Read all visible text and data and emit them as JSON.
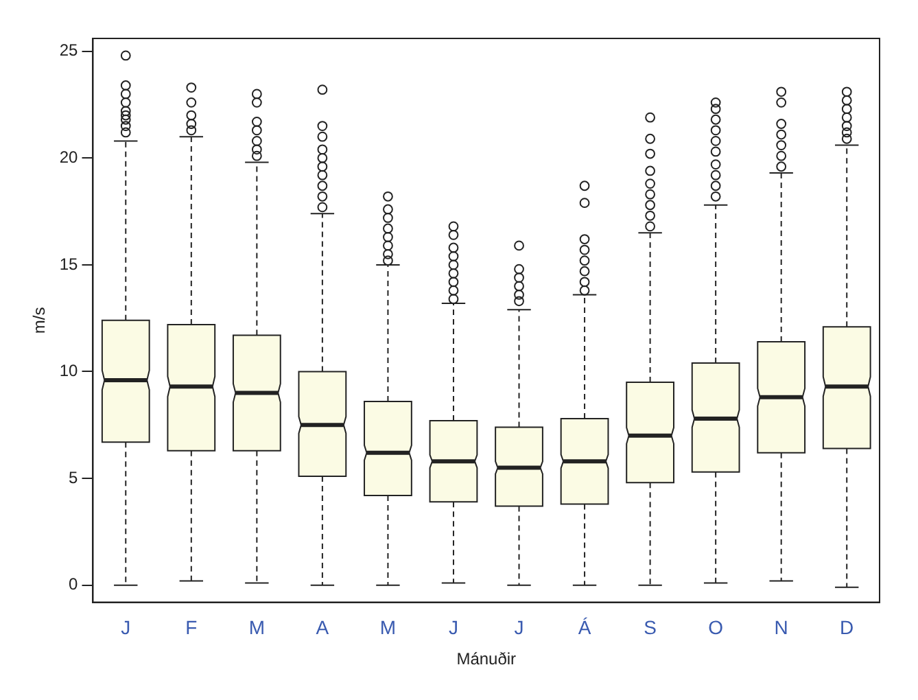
{
  "chart_data": {
    "type": "box",
    "xlabel": "Mánuðir",
    "ylabel": "m/s",
    "categories": [
      "J",
      "F",
      "M",
      "A",
      "M",
      "J",
      "J",
      "Á",
      "S",
      "O",
      "N",
      "D"
    ],
    "color": "#fbfbe4",
    "ylim": [
      -0.8,
      25.6
    ],
    "yticks": [
      0,
      5,
      10,
      15,
      20,
      25
    ],
    "grid": false,
    "legend": false,
    "boxes": [
      {
        "low": 0,
        "q1": 6.7,
        "median": 9.6,
        "q3": 12.4,
        "high": 20.8,
        "outliers": [
          21.2,
          21.5,
          21.8,
          22.0,
          22.2,
          22.6,
          23.0,
          23.4,
          24.8
        ]
      },
      {
        "low": 0.2,
        "q1": 6.3,
        "median": 9.3,
        "q3": 12.2,
        "high": 21.0,
        "outliers": [
          21.3,
          21.6,
          22.0,
          22.6,
          23.3
        ]
      },
      {
        "low": 0.1,
        "q1": 6.3,
        "median": 9.0,
        "q3": 11.7,
        "high": 19.8,
        "outliers": [
          20.1,
          20.4,
          20.8,
          21.3,
          21.7,
          22.6,
          23.0
        ]
      },
      {
        "low": 0,
        "q1": 5.1,
        "median": 7.5,
        "q3": 10.0,
        "high": 17.4,
        "outliers": [
          17.7,
          18.2,
          18.7,
          19.2,
          19.6,
          20.0,
          20.4,
          21.0,
          21.5,
          23.2
        ]
      },
      {
        "low": 0,
        "q1": 4.2,
        "median": 6.2,
        "q3": 8.6,
        "high": 15.0,
        "outliers": [
          15.2,
          15.5,
          15.9,
          16.3,
          16.7,
          17.2,
          17.6,
          18.2
        ]
      },
      {
        "low": 0.1,
        "q1": 3.9,
        "median": 5.8,
        "q3": 7.7,
        "high": 13.2,
        "outliers": [
          13.4,
          13.8,
          14.2,
          14.6,
          15.0,
          15.4,
          15.8,
          16.4,
          16.8
        ]
      },
      {
        "low": 0,
        "q1": 3.7,
        "median": 5.5,
        "q3": 7.4,
        "high": 12.9,
        "outliers": [
          13.3,
          13.6,
          14.0,
          14.4,
          14.8,
          15.9
        ]
      },
      {
        "low": 0,
        "q1": 3.8,
        "median": 5.8,
        "q3": 7.8,
        "high": 13.6,
        "outliers": [
          13.8,
          14.2,
          14.7,
          15.2,
          15.7,
          16.2,
          17.9,
          18.7
        ]
      },
      {
        "low": 0,
        "q1": 4.8,
        "median": 7.0,
        "q3": 9.5,
        "high": 16.5,
        "outliers": [
          16.8,
          17.3,
          17.8,
          18.3,
          18.8,
          19.4,
          20.2,
          20.9,
          21.9
        ]
      },
      {
        "low": 0.1,
        "q1": 5.3,
        "median": 7.8,
        "q3": 10.4,
        "high": 17.8,
        "outliers": [
          18.2,
          18.7,
          19.2,
          19.7,
          20.3,
          20.8,
          21.3,
          21.8,
          22.3,
          22.6
        ]
      },
      {
        "low": 0.2,
        "q1": 6.2,
        "median": 8.8,
        "q3": 11.4,
        "high": 19.3,
        "outliers": [
          19.6,
          20.1,
          20.6,
          21.1,
          21.6,
          22.6,
          23.1
        ]
      },
      {
        "low": -0.1,
        "q1": 6.4,
        "median": 9.3,
        "q3": 12.1,
        "high": 20.6,
        "outliers": [
          20.9,
          21.2,
          21.5,
          21.9,
          22.3,
          22.7,
          23.1
        ]
      }
    ]
  }
}
